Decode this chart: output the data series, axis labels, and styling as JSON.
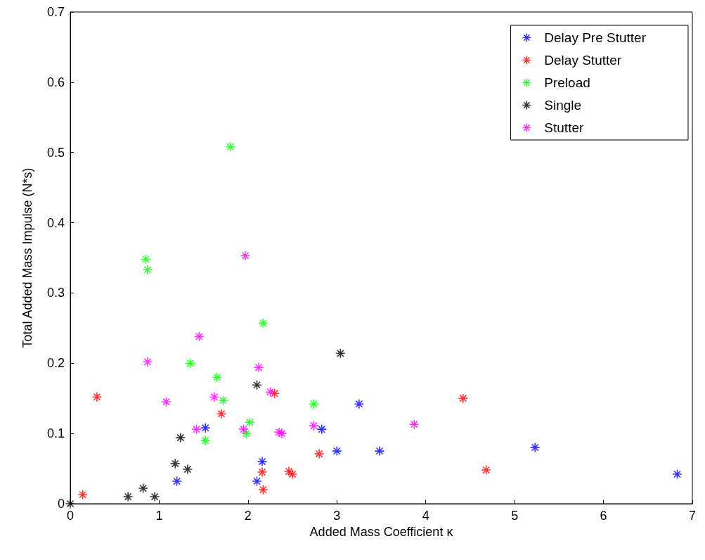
{
  "chart_data": {
    "type": "scatter",
    "xlabel": "Added Mass Coefficient κ",
    "ylabel": "Total Added Mass Impulse (N*s)",
    "xlim": [
      0,
      7
    ],
    "xticks": [
      0,
      1,
      2,
      3,
      4,
      5,
      6,
      7
    ],
    "ylim": [
      0,
      0.7
    ],
    "yticks": [
      0,
      0.1,
      0.2,
      0.3,
      0.4,
      0.5,
      0.6,
      0.7
    ],
    "grid": false,
    "legend": "top right",
    "marker": "cross",
    "series": [
      {
        "name": "Delay Pre Stutter",
        "color": "#0000ff",
        "x": [
          1.2,
          1.52,
          2.1,
          2.16,
          2.83,
          3.0,
          3.25,
          3.48,
          5.23,
          6.83
        ],
        "values": [
          0.032,
          0.108,
          0.032,
          0.06,
          0.106,
          0.075,
          0.142,
          0.075,
          0.08,
          0.042
        ]
      },
      {
        "name": "Delay Stutter",
        "color": "#ff0000",
        "x": [
          0.14,
          0.3,
          1.7,
          2.16,
          2.17,
          2.3,
          2.46,
          2.5,
          2.8,
          4.42,
          4.68
        ],
        "values": [
          0.013,
          0.152,
          0.128,
          0.045,
          0.02,
          0.157,
          0.046,
          0.042,
          0.071,
          0.15,
          0.048
        ]
      },
      {
        "name": "Preload",
        "color": "#00ff00",
        "x": [
          1.8,
          0.85,
          0.87,
          2.17,
          1.35,
          1.65,
          1.72,
          1.52,
          2.02,
          1.98,
          2.74
        ],
        "values": [
          0.508,
          0.348,
          0.333,
          0.257,
          0.2,
          0.18,
          0.147,
          0.09,
          0.116,
          0.1,
          0.142
        ]
      },
      {
        "name": "Single",
        "color": "#000000",
        "x": [
          0,
          0.65,
          0.82,
          0.95,
          1.18,
          1.32,
          1.24,
          2.1,
          3.04
        ],
        "values": [
          0,
          0.01,
          0.022,
          0.01,
          0.057,
          0.049,
          0.094,
          0.169,
          0.214
        ]
      },
      {
        "name": "Stutter",
        "color": "#ff00ff",
        "x": [
          1.97,
          1.45,
          0.87,
          2.12,
          1.08,
          1.62,
          2.25,
          1.42,
          1.95,
          2.35,
          2.38,
          2.74,
          3.87
        ],
        "values": [
          0.353,
          0.238,
          0.202,
          0.194,
          0.145,
          0.152,
          0.159,
          0.106,
          0.106,
          0.102,
          0.1,
          0.111,
          0.113
        ]
      }
    ]
  }
}
